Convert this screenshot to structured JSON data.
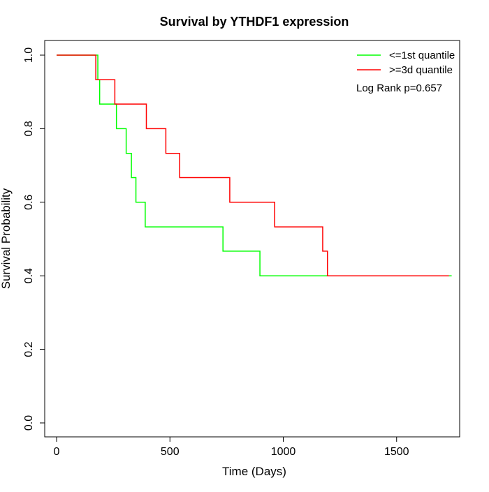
{
  "chart_data": {
    "type": "line",
    "subtype": "kaplan-meier step",
    "title": "Survival by YTHDF1 expression",
    "xlabel": "Time (Days)",
    "ylabel": "Survival Probability",
    "xlim": [
      0,
      1750
    ],
    "ylim": [
      0,
      1
    ],
    "x_ticks": [
      "0",
      "500",
      "1000",
      "1500"
    ],
    "y_ticks": [
      "0.0",
      "0.2",
      "0.4",
      "0.6",
      "0.8",
      "1.0"
    ],
    "grid": false,
    "legend_position": "top-right",
    "annotation": "Log Rank p=0.657",
    "series": [
      {
        "name": "<=1st quantile",
        "color": "#00ff00",
        "x": [
          0,
          182,
          190,
          264,
          307,
          330,
          350,
          391,
          734,
          897,
          1743
        ],
        "y": [
          1.0,
          0.933,
          0.867,
          0.8,
          0.733,
          0.667,
          0.6,
          0.533,
          0.467,
          0.4,
          0.4
        ]
      },
      {
        "name": ">=3d quantile",
        "color": "#ff0000",
        "x": [
          0,
          173,
          257,
          396,
          482,
          543,
          764,
          962,
          1174,
          1195,
          1731
        ],
        "y": [
          1.0,
          0.933,
          0.867,
          0.8,
          0.733,
          0.667,
          0.6,
          0.533,
          0.467,
          0.4,
          0.4
        ]
      }
    ]
  }
}
